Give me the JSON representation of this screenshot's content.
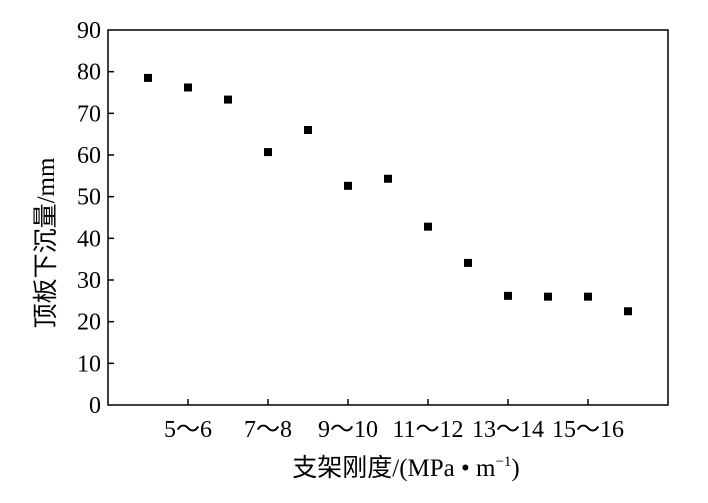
{
  "chart_data": {
    "type": "scatter",
    "title": "",
    "xlabel": "支架刚度/(MPa • m",
    "xlabel_sup": "−1",
    "xlabel_end": ")",
    "ylabel": "顶板下沉量/mm",
    "xlim": [
      0,
      14
    ],
    "ylim": [
      0,
      90
    ],
    "y_ticks": [
      0,
      10,
      20,
      30,
      40,
      50,
      60,
      70,
      80,
      90
    ],
    "x_ticks": [
      {
        "x": 2,
        "label": "5～6"
      },
      {
        "x": 4,
        "label": "7～8"
      },
      {
        "x": 6,
        "label": "9～10"
      },
      {
        "x": 8,
        "label": "11～12"
      },
      {
        "x": 10,
        "label": "13～14"
      },
      {
        "x": 12,
        "label": "15～16"
      }
    ],
    "grid": false,
    "legend": "none",
    "marker_color": "#000000",
    "points": [
      {
        "x": 1,
        "y": 78.5
      },
      {
        "x": 2,
        "y": 76.2
      },
      {
        "x": 3,
        "y": 73.3
      },
      {
        "x": 4,
        "y": 60.7
      },
      {
        "x": 5,
        "y": 66.0
      },
      {
        "x": 6,
        "y": 52.6
      },
      {
        "x": 7,
        "y": 54.3
      },
      {
        "x": 8,
        "y": 42.8
      },
      {
        "x": 9,
        "y": 34.1
      },
      {
        "x": 10,
        "y": 26.2
      },
      {
        "x": 11,
        "y": 26.0
      },
      {
        "x": 12,
        "y": 26.0
      },
      {
        "x": 13,
        "y": 22.5
      }
    ]
  }
}
